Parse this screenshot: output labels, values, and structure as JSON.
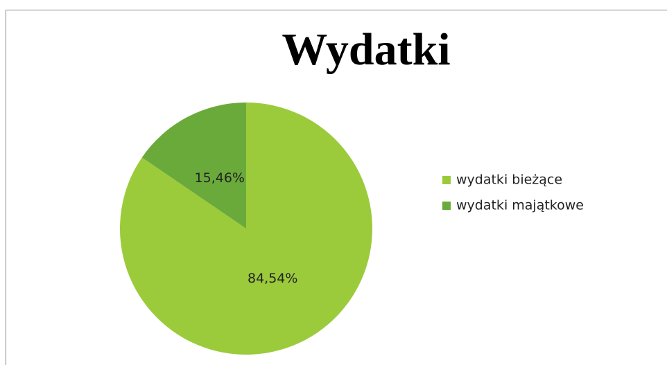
{
  "chart_data": {
    "type": "pie",
    "title": "Wydatki",
    "categories": [
      "wydatki bieżące",
      "wydatki majątkowe"
    ],
    "values": [
      84.54,
      15.46
    ],
    "value_labels": [
      "84,54%",
      "15,46%"
    ],
    "colors": [
      "#9bcb3b",
      "#6aaa3a"
    ],
    "legend": "right"
  }
}
